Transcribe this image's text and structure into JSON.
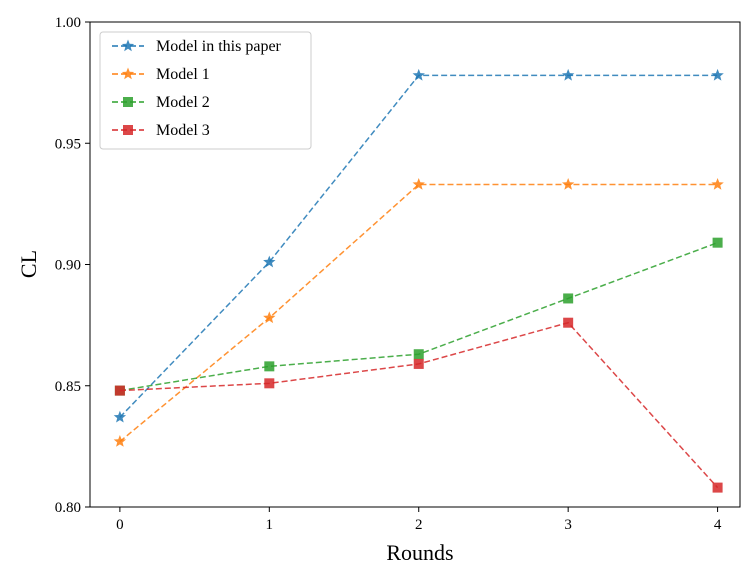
{
  "chart_data": {
    "type": "line",
    "xlabel": "Rounds",
    "ylabel": "CL",
    "x": [
      0,
      1,
      2,
      3,
      4
    ],
    "xticks": [
      "0",
      "1",
      "2",
      "3",
      "4"
    ],
    "xlim": [
      -0.2,
      4.15
    ],
    "ylim": [
      0.8,
      1.0
    ],
    "yticks": [
      "0.80",
      "0.85",
      "0.90",
      "0.95",
      "1.00"
    ],
    "grid": false,
    "legend_position": "top-left",
    "series": [
      {
        "name": "Model in this paper",
        "marker": "star",
        "color": "#1f77b4",
        "values": [
          0.837,
          0.901,
          0.978,
          0.978,
          0.978
        ]
      },
      {
        "name": "Model 1",
        "marker": "star",
        "color": "#ff7f0e",
        "values": [
          0.827,
          0.878,
          0.933,
          0.933,
          0.933
        ]
      },
      {
        "name": "Model 2",
        "marker": "square",
        "color": "#2ca02c",
        "values": [
          0.848,
          0.858,
          0.863,
          0.886,
          0.909
        ]
      },
      {
        "name": "Model 3",
        "marker": "square",
        "color": "#d62728",
        "values": [
          0.848,
          0.851,
          0.859,
          0.876,
          0.808
        ]
      }
    ]
  }
}
